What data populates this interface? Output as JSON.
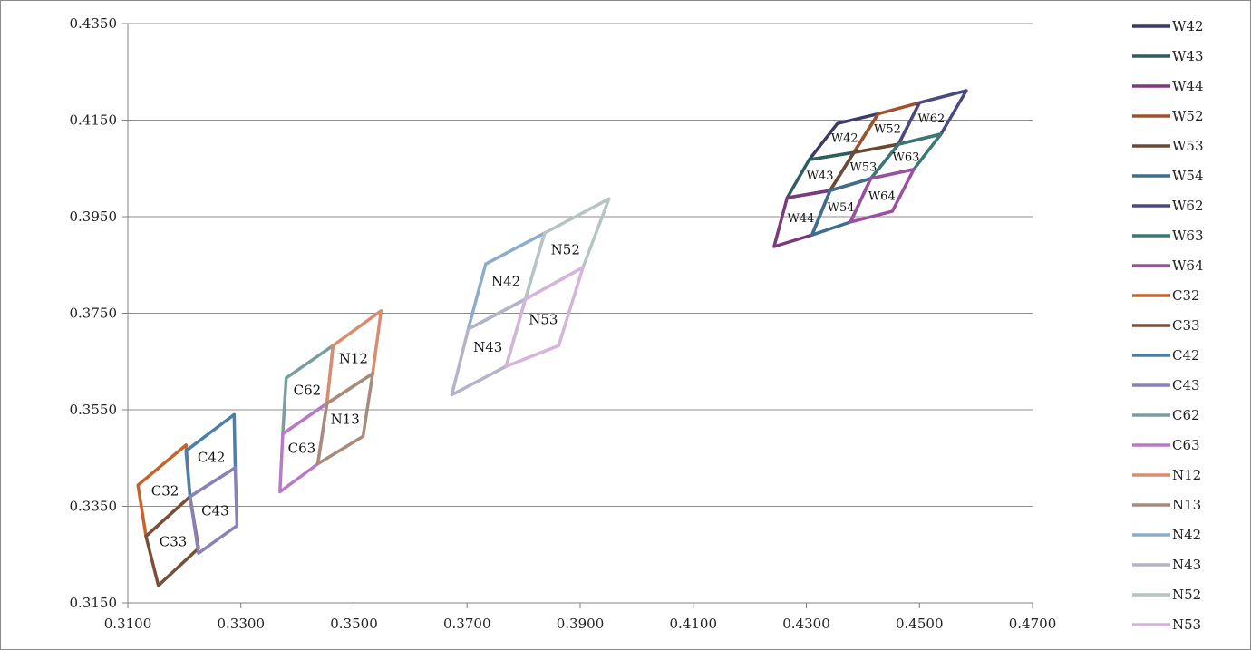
{
  "chart_data": {
    "type": "line",
    "title": "",
    "xlabel": "",
    "ylabel": "",
    "xlim": [
      0.31,
      0.47
    ],
    "ylim": [
      0.315,
      0.435
    ],
    "x_ticks": [
      "0.3100",
      "0.3300",
      "0.3500",
      "0.3700",
      "0.3900",
      "0.4100",
      "0.4300",
      "0.4500",
      "0.4700"
    ],
    "x_tick_values": [
      0.31,
      0.33,
      0.35,
      0.37,
      0.39,
      0.41,
      0.43,
      0.45,
      0.47
    ],
    "y_ticks": [
      "0.4350",
      "0.4150",
      "0.3950",
      "0.3750",
      "0.3550",
      "0.3350",
      "0.3150"
    ],
    "y_tick_values": [
      0.435,
      0.415,
      0.395,
      0.375,
      0.355,
      0.335,
      0.315
    ],
    "grid": "horizontal",
    "legend_position": "right",
    "series": [
      {
        "name": "W42",
        "color": "#3b3a68",
        "label": "W42",
        "points": [
          [
            0.4305,
            0.4068
          ],
          [
            0.4355,
            0.4143
          ],
          [
            0.4427,
            0.4163
          ],
          [
            0.4384,
            0.4083
          ]
        ]
      },
      {
        "name": "W43",
        "color": "#2f5e5e",
        "label": "W43",
        "points": [
          [
            0.4266,
            0.3989
          ],
          [
            0.4305,
            0.4068
          ],
          [
            0.4384,
            0.4083
          ],
          [
            0.4342,
            0.4004
          ]
        ]
      },
      {
        "name": "W44",
        "color": "#7b3a7b",
        "label": "W44",
        "points": [
          [
            0.4243,
            0.3888
          ],
          [
            0.4266,
            0.3989
          ],
          [
            0.4342,
            0.4004
          ],
          [
            0.431,
            0.3912
          ]
        ]
      },
      {
        "name": "W52",
        "color": "#a0522d",
        "label": "W52",
        "points": [
          [
            0.4384,
            0.4083
          ],
          [
            0.4427,
            0.4163
          ],
          [
            0.45,
            0.4186
          ],
          [
            0.4463,
            0.41
          ]
        ]
      },
      {
        "name": "W53",
        "color": "#6b4a35",
        "label": "W53",
        "points": [
          [
            0.4342,
            0.4004
          ],
          [
            0.4384,
            0.4083
          ],
          [
            0.4463,
            0.41
          ],
          [
            0.4414,
            0.4029
          ]
        ]
      },
      {
        "name": "W54",
        "color": "#3e6e8e",
        "label": "W54",
        "points": [
          [
            0.431,
            0.3912
          ],
          [
            0.4342,
            0.4004
          ],
          [
            0.4414,
            0.4029
          ],
          [
            0.4378,
            0.3939
          ]
        ]
      },
      {
        "name": "W62",
        "color": "#4a4a80",
        "label": "W62",
        "points": [
          [
            0.4463,
            0.41
          ],
          [
            0.45,
            0.4186
          ],
          [
            0.4583,
            0.4211
          ],
          [
            0.4538,
            0.4121
          ]
        ]
      },
      {
        "name": "W63",
        "color": "#3a7878",
        "label": "W63",
        "points": [
          [
            0.4414,
            0.4029
          ],
          [
            0.4463,
            0.41
          ],
          [
            0.4538,
            0.4121
          ],
          [
            0.449,
            0.4048
          ]
        ]
      },
      {
        "name": "W64",
        "color": "#9b4fa0",
        "label": "W64",
        "points": [
          [
            0.4378,
            0.3939
          ],
          [
            0.4414,
            0.4029
          ],
          [
            0.449,
            0.4048
          ],
          [
            0.4452,
            0.3961
          ]
        ]
      },
      {
        "name": "C32",
        "color": "#c8622a",
        "label": "C32",
        "points": [
          [
            0.3132,
            0.3288
          ],
          [
            0.3118,
            0.3394
          ],
          [
            0.3203,
            0.3477
          ],
          [
            0.321,
            0.337
          ]
        ]
      },
      {
        "name": "C33",
        "color": "#7a4f3a",
        "label": "C33",
        "points": [
          [
            0.3154,
            0.3186
          ],
          [
            0.3132,
            0.3288
          ],
          [
            0.321,
            0.337
          ],
          [
            0.3225,
            0.3263
          ]
        ]
      },
      {
        "name": "C42",
        "color": "#4a80a8",
        "label": "C42",
        "points": [
          [
            0.321,
            0.337
          ],
          [
            0.3203,
            0.3465
          ],
          [
            0.3288,
            0.354
          ],
          [
            0.329,
            0.343
          ]
        ]
      },
      {
        "name": "C43",
        "color": "#8a82b5",
        "label": "C43",
        "points": [
          [
            0.3225,
            0.3253
          ],
          [
            0.321,
            0.337
          ],
          [
            0.329,
            0.343
          ],
          [
            0.3293,
            0.331
          ]
        ]
      },
      {
        "name": "C62",
        "color": "#7a9e9e",
        "label": "C62",
        "points": [
          [
            0.3374,
            0.35
          ],
          [
            0.338,
            0.3616
          ],
          [
            0.3463,
            0.3683
          ],
          [
            0.3452,
            0.3563
          ]
        ]
      },
      {
        "name": "C63",
        "color": "#b87ac8",
        "label": "C63",
        "points": [
          [
            0.3369,
            0.338
          ],
          [
            0.3374,
            0.35
          ],
          [
            0.3452,
            0.3563
          ],
          [
            0.3436,
            0.3438
          ]
        ]
      },
      {
        "name": "N12",
        "color": "#d88e6e",
        "label": "N12",
        "points": [
          [
            0.3452,
            0.3563
          ],
          [
            0.3463,
            0.3683
          ],
          [
            0.3548,
            0.3755
          ],
          [
            0.3533,
            0.3625
          ]
        ]
      },
      {
        "name": "N13",
        "color": "#a88b7a",
        "label": "N13",
        "points": [
          [
            0.3436,
            0.3438
          ],
          [
            0.3452,
            0.3563
          ],
          [
            0.3533,
            0.3625
          ],
          [
            0.3516,
            0.3495
          ]
        ]
      },
      {
        "name": "N42",
        "color": "#8caccc",
        "label": "N42",
        "points": [
          [
            0.3702,
            0.3717
          ],
          [
            0.3733,
            0.3852
          ],
          [
            0.3837,
            0.3916
          ],
          [
            0.3803,
            0.3779
          ]
        ]
      },
      {
        "name": "N43",
        "color": "#b4b4c8",
        "label": "N43",
        "points": [
          [
            0.3673,
            0.3581
          ],
          [
            0.3702,
            0.3717
          ],
          [
            0.3803,
            0.3779
          ],
          [
            0.3769,
            0.364
          ]
        ]
      },
      {
        "name": "N52",
        "color": "#b8c4c4",
        "label": "N52",
        "points": [
          [
            0.3803,
            0.3779
          ],
          [
            0.3837,
            0.3916
          ],
          [
            0.3951,
            0.3987
          ],
          [
            0.3905,
            0.3845
          ]
        ]
      },
      {
        "name": "N53",
        "color": "#d4b4d8",
        "label": "N53",
        "points": [
          [
            0.3769,
            0.364
          ],
          [
            0.3803,
            0.3779
          ],
          [
            0.3905,
            0.3845
          ],
          [
            0.3862,
            0.3683
          ]
        ]
      }
    ],
    "legend": [
      {
        "label": "W42",
        "color": "#3b3a68"
      },
      {
        "label": "W43",
        "color": "#2f5e5e"
      },
      {
        "label": "W44",
        "color": "#7b3a7b"
      },
      {
        "label": "W52",
        "color": "#a0522d"
      },
      {
        "label": "W53",
        "color": "#6b4a35"
      },
      {
        "label": "W54",
        "color": "#3e6e8e"
      },
      {
        "label": "W62",
        "color": "#4a4a80"
      },
      {
        "label": "W63",
        "color": "#3a7878"
      },
      {
        "label": "W64",
        "color": "#9b4fa0"
      },
      {
        "label": "C32",
        "color": "#c8622a"
      },
      {
        "label": "C33",
        "color": "#7a4f3a"
      },
      {
        "label": "C42",
        "color": "#4a80a8"
      },
      {
        "label": "C43",
        "color": "#8a82b5"
      },
      {
        "label": "C62",
        "color": "#7a9e9e"
      },
      {
        "label": "C63",
        "color": "#b87ac8"
      },
      {
        "label": "N12",
        "color": "#d88e6e"
      },
      {
        "label": "N13",
        "color": "#a88b7a"
      },
      {
        "label": "N42",
        "color": "#8caccc"
      },
      {
        "label": "N43",
        "color": "#b4b4c8"
      },
      {
        "label": "N52",
        "color": "#b8c4c4"
      },
      {
        "label": "N53",
        "color": "#d4b4d8"
      }
    ]
  }
}
